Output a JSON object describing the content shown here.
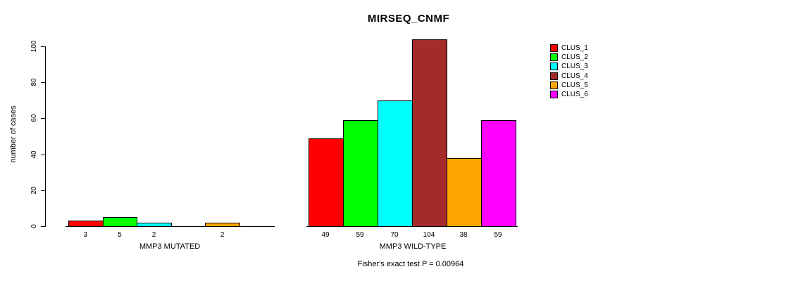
{
  "chart_data": {
    "type": "bar",
    "title": "MIRSEQ_CNMF",
    "ylabel": "number of cases",
    "xlabel": "",
    "ylim": [
      0,
      100
    ],
    "yticks": [
      0,
      20,
      40,
      60,
      80,
      100
    ],
    "grid": false,
    "legend_position": "right",
    "series": [
      {
        "name": "CLUS_1",
        "color": "#FF0000",
        "values": [
          3,
          49
        ]
      },
      {
        "name": "CLUS_2",
        "color": "#00FF00",
        "values": [
          5,
          59
        ]
      },
      {
        "name": "CLUS_3",
        "color": "#00FFFF",
        "values": [
          2,
          70
        ]
      },
      {
        "name": "CLUS_4",
        "color": "#A52A2A",
        "values": [
          0,
          104
        ]
      },
      {
        "name": "CLUS_5",
        "color": "#FFA500",
        "values": [
          2,
          38
        ]
      },
      {
        "name": "CLUS_6",
        "color": "#FF00FF",
        "values": [
          0,
          59
        ]
      }
    ],
    "groups": [
      {
        "label": "MMP3 MUTATED",
        "values": [
          3,
          5,
          2,
          0,
          2,
          0
        ],
        "bar_labels": [
          "3",
          "5",
          "2",
          "",
          "2",
          ""
        ]
      },
      {
        "label": "MMP3 WILD-TYPE",
        "values": [
          49,
          59,
          70,
          104,
          38,
          59
        ],
        "bar_labels": [
          "49",
          "59",
          "70",
          "104",
          "38",
          "59"
        ]
      }
    ],
    "annotation": "Fisher's exact test P = 0.00964"
  }
}
